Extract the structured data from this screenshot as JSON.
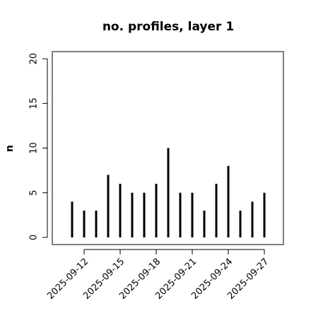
{
  "chart_data": {
    "type": "bar",
    "title": "no. profiles, layer 1",
    "y_label": "n",
    "categories": [
      "2025-09-11",
      "2025-09-12",
      "2025-09-13",
      "2025-09-14",
      "2025-09-15",
      "2025-09-16",
      "2025-09-17",
      "2025-09-18",
      "2025-09-19",
      "2025-09-20",
      "2025-09-21",
      "2025-09-22",
      "2025-09-23",
      "2025-09-24",
      "2025-09-25",
      "2025-09-26",
      "2025-09-27"
    ],
    "values": [
      4,
      3,
      3,
      7,
      6,
      5,
      5,
      6,
      10,
      5,
      5,
      3,
      6,
      8,
      3,
      4,
      5
    ],
    "color": "#000000",
    "xticks": [
      "2025-09-12",
      "2025-09-15",
      "2025-09-18",
      "2025-09-21",
      "2025-09-24",
      "2025-09-27"
    ],
    "highlight_tick": "2025-09-18",
    "highlight_color": "#228b22",
    "ylim": [
      -0.8,
      20.8
    ],
    "yticks": [
      0,
      5,
      10,
      15,
      20
    ]
  }
}
